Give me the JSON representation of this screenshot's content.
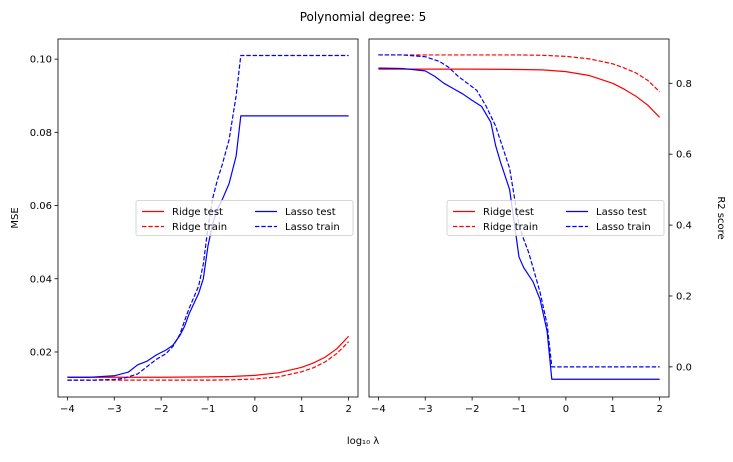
{
  "figure": {
    "suptitle": "Polynomial degree: 5",
    "shared_xlabel": "log₁₀ λ"
  },
  "chart_data": [
    {
      "type": "line",
      "xlabel": "",
      "ylabel": "MSE",
      "xlim": [
        -4.2,
        2.2
      ],
      "ylim": [
        0.0077,
        0.1055
      ],
      "xticks": [
        -4,
        -3,
        -2,
        -1,
        0,
        1,
        2
      ],
      "xtick_labels": [
        "−4",
        "−3",
        "−2",
        "−1",
        "0",
        "1",
        "2"
      ],
      "yticks": [
        0.02,
        0.04,
        0.06,
        0.08,
        0.1
      ],
      "ytick_labels": [
        "0.02",
        "0.04",
        "0.06",
        "0.08",
        "0.10"
      ],
      "y_axis_side": "left",
      "grid": false,
      "legend": {
        "placement": "center-right",
        "columns": 2
      },
      "series": [
        {
          "name": "Ridge test",
          "color": "#ff0000",
          "dash": "solid",
          "x": [
            -4,
            -3,
            -2,
            -1,
            -0.5,
            0,
            0.5,
            1,
            1.25,
            1.5,
            1.75,
            2
          ],
          "y": [
            0.0131,
            0.0131,
            0.0131,
            0.0132,
            0.0133,
            0.0136,
            0.0143,
            0.0158,
            0.017,
            0.0186,
            0.0209,
            0.0243
          ]
        },
        {
          "name": "Ridge train",
          "color": "#ff0000",
          "dash": "dashed",
          "x": [
            -4,
            -3,
            -2,
            -1,
            -0.5,
            0,
            0.5,
            1,
            1.25,
            1.5,
            1.75,
            2
          ],
          "y": [
            0.0123,
            0.0123,
            0.0123,
            0.0123,
            0.0124,
            0.0126,
            0.0132,
            0.0146,
            0.0157,
            0.0173,
            0.0196,
            0.0228
          ]
        },
        {
          "name": "Lasso test",
          "color": "#0000ff",
          "dash": "solid",
          "x": [
            -4,
            -3.5,
            -3,
            -2.7,
            -2.5,
            -2.3,
            -2.1,
            -1.9,
            -1.75,
            -1.6,
            -1.5,
            -1.4,
            -1.2,
            -1.1,
            -1.0,
            -0.9,
            -0.8,
            -0.7,
            -0.55,
            -0.4,
            -0.3,
            0,
            0.5,
            1,
            1.5,
            2
          ],
          "y": [
            0.0131,
            0.0131,
            0.0135,
            0.0145,
            0.0165,
            0.0175,
            0.0192,
            0.0205,
            0.0218,
            0.0245,
            0.027,
            0.0305,
            0.036,
            0.04,
            0.049,
            0.055,
            0.059,
            0.0615,
            0.066,
            0.0735,
            0.0845,
            0.0845,
            0.0845,
            0.0845,
            0.0845,
            0.0845
          ]
        },
        {
          "name": "Lasso train",
          "color": "#0000ff",
          "dash": "dashed",
          "x": [
            -4,
            -3.5,
            -3,
            -2.8,
            -2.5,
            -2.3,
            -2.1,
            -1.9,
            -1.75,
            -1.6,
            -1.5,
            -1.4,
            -1.2,
            -1.1,
            -1.0,
            -0.9,
            -0.8,
            -0.7,
            -0.55,
            -0.4,
            -0.3,
            0,
            0.5,
            1,
            1.5,
            2
          ],
          "y": [
            0.0123,
            0.0123,
            0.0125,
            0.0128,
            0.014,
            0.016,
            0.018,
            0.0195,
            0.0215,
            0.0248,
            0.0285,
            0.032,
            0.038,
            0.044,
            0.054,
            0.062,
            0.067,
            0.071,
            0.078,
            0.09,
            0.101,
            0.101,
            0.101,
            0.101,
            0.101,
            0.101
          ]
        }
      ]
    },
    {
      "type": "line",
      "xlabel": "",
      "ylabel": "R2 score",
      "xlim": [
        -4.2,
        2.2
      ],
      "ylim": [
        -0.085,
        0.925
      ],
      "xticks": [
        -4,
        -3,
        -2,
        -1,
        0,
        1,
        2
      ],
      "xtick_labels": [
        "−4",
        "−3",
        "−2",
        "−1",
        "0",
        "1",
        "2"
      ],
      "yticks": [
        0.0,
        0.2,
        0.4,
        0.6,
        0.8
      ],
      "ytick_labels": [
        "0.0",
        "0.2",
        "0.4",
        "0.6",
        "0.8"
      ],
      "y_axis_side": "right",
      "grid": false,
      "legend": {
        "placement": "center-right",
        "columns": 2
      },
      "series": [
        {
          "name": "Ridge test",
          "color": "#ff0000",
          "dash": "solid",
          "x": [
            -4,
            -3,
            -2,
            -1,
            -0.5,
            0,
            0.5,
            1,
            1.25,
            1.5,
            1.75,
            2
          ],
          "y": [
            0.84,
            0.84,
            0.84,
            0.839,
            0.838,
            0.833,
            0.822,
            0.8,
            0.783,
            0.763,
            0.738,
            0.704
          ]
        },
        {
          "name": "Ridge train",
          "color": "#ff0000",
          "dash": "dashed",
          "x": [
            -4,
            -3,
            -2,
            -1,
            -0.5,
            0,
            0.5,
            1,
            1.25,
            1.5,
            1.75,
            2
          ],
          "y": [
            0.88,
            0.88,
            0.88,
            0.88,
            0.879,
            0.876,
            0.869,
            0.855,
            0.843,
            0.829,
            0.808,
            0.776
          ]
        },
        {
          "name": "Lasso test",
          "color": "#0000ff",
          "dash": "solid",
          "x": [
            -4,
            -3.5,
            -3,
            -2.8,
            -2.6,
            -2.4,
            -2.2,
            -2.0,
            -1.8,
            -1.6,
            -1.5,
            -1.4,
            -1.2,
            -1.0,
            -0.95,
            -0.9,
            -0.8,
            -0.7,
            -0.55,
            -0.4,
            -0.3,
            0,
            0.5,
            1,
            1.5,
            2
          ],
          "y": [
            0.843,
            0.842,
            0.835,
            0.82,
            0.8,
            0.785,
            0.77,
            0.752,
            0.735,
            0.69,
            0.625,
            0.58,
            0.5,
            0.31,
            0.295,
            0.28,
            0.26,
            0.24,
            0.19,
            0.1,
            -0.035,
            -0.035,
            -0.035,
            -0.035,
            -0.035,
            -0.035
          ]
        },
        {
          "name": "Lasso train",
          "color": "#0000ff",
          "dash": "dashed",
          "x": [
            -4,
            -3.5,
            -3,
            -2.7,
            -2.5,
            -2.3,
            -2.1,
            -1.9,
            -1.7,
            -1.5,
            -1.4,
            -1.2,
            -1.1,
            -1.0,
            -0.9,
            -0.8,
            -0.7,
            -0.55,
            -0.4,
            -0.3,
            0,
            0.5,
            1,
            1.5,
            2
          ],
          "y": [
            0.88,
            0.88,
            0.875,
            0.862,
            0.845,
            0.82,
            0.8,
            0.78,
            0.735,
            0.68,
            0.64,
            0.56,
            0.48,
            0.4,
            0.36,
            0.325,
            0.28,
            0.21,
            0.12,
            0.0,
            0.0,
            0.0,
            0.0,
            0.0,
            0.0
          ]
        }
      ]
    }
  ]
}
